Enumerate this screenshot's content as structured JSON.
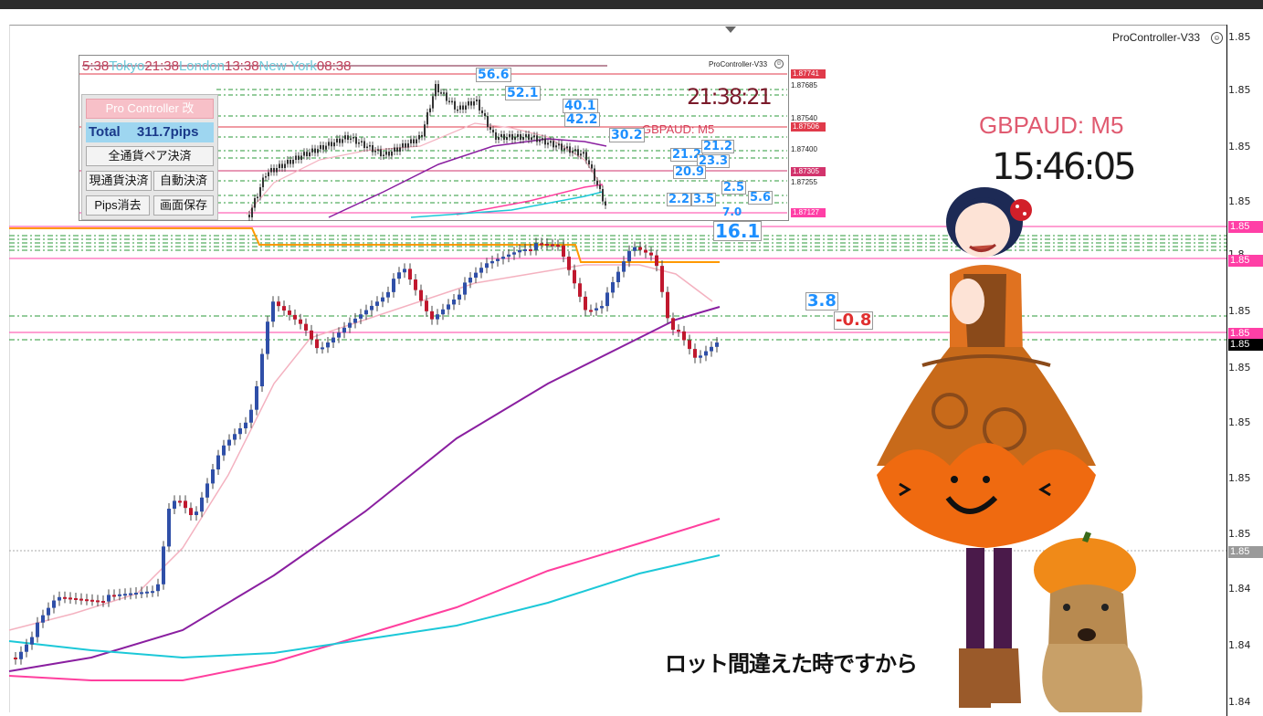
{
  "window": {
    "ea_name": "ProController-V33",
    "smiley": "☺"
  },
  "price_axis": {
    "labels": [
      "1.85",
      "1.85",
      "1.85",
      "1.85",
      "1.85",
      "1.85",
      "1.85",
      "1.85",
      "1.85",
      "1.84",
      "1.84",
      "1.84"
    ],
    "tags": [
      "1.85",
      "1.85",
      "1.85",
      "1.85",
      "1.85"
    ],
    "tag_colors": [
      "#ff3fa6",
      "#ff3fa6",
      "#ff3fa6",
      "#000000",
      "#9a9a9a"
    ],
    "partial": "1.8"
  },
  "sessions": {
    "items": [
      {
        "label": "5:38",
        "color": "#c0405a"
      },
      {
        "label": "Tokyo",
        "color": "#6cc9d9"
      },
      {
        "label": "21:38",
        "color": "#c0405a"
      },
      {
        "label": "London",
        "color": "#6cc9d9"
      },
      {
        "label": "13:38",
        "color": "#c0405a"
      },
      {
        "label": "New York",
        "color": "#6cc9d9"
      },
      {
        "label": "08:38",
        "color": "#c0405a"
      }
    ]
  },
  "inset": {
    "ea_name": "ProController-V33",
    "clock": "21:38:21",
    "symbol": "GBPAUD: M5",
    "prices": [
      "1.87685",
      "1.87540",
      "1.87400",
      "1.87255"
    ],
    "tags": [
      "1.87741",
      "1.87506",
      "1.87305",
      "1.87127"
    ]
  },
  "panel": {
    "title": "Pro Controller 改",
    "total_label": "Total",
    "total_value": "311.7pips",
    "close_all": "全通貨ペア決済",
    "close_current": "現通貨決済",
    "auto_close": "自動決済",
    "clear_pips": "Pips消去",
    "save_screen": "画面保存"
  },
  "pips_boxes": {
    "inset": [
      "56.6",
      "52.1",
      "40.1",
      "42.2",
      "30.2",
      "21.2",
      "21.2",
      "23.3",
      "20.9",
      "2.5",
      "2.2",
      "3.5",
      "5.6",
      "7.0"
    ],
    "main": [
      "16.1",
      "3.8",
      "-0.8"
    ]
  },
  "overlay": {
    "symbol": "GBPAUD: M5",
    "time": "15:46:05"
  },
  "subtitle": "ロット間違えた時ですから",
  "colors": {
    "bull": "#2f4fa8",
    "bear": "#c0182e",
    "ma_fast": "#f4b2c0",
    "ma_mid": "#8a1fa0",
    "ma_slow1": "#ff3f9e",
    "ma_slow2": "#1cc8d8",
    "level": "#ff66b8",
    "green": "#2b9a3a",
    "orange": "#ff9900"
  }
}
